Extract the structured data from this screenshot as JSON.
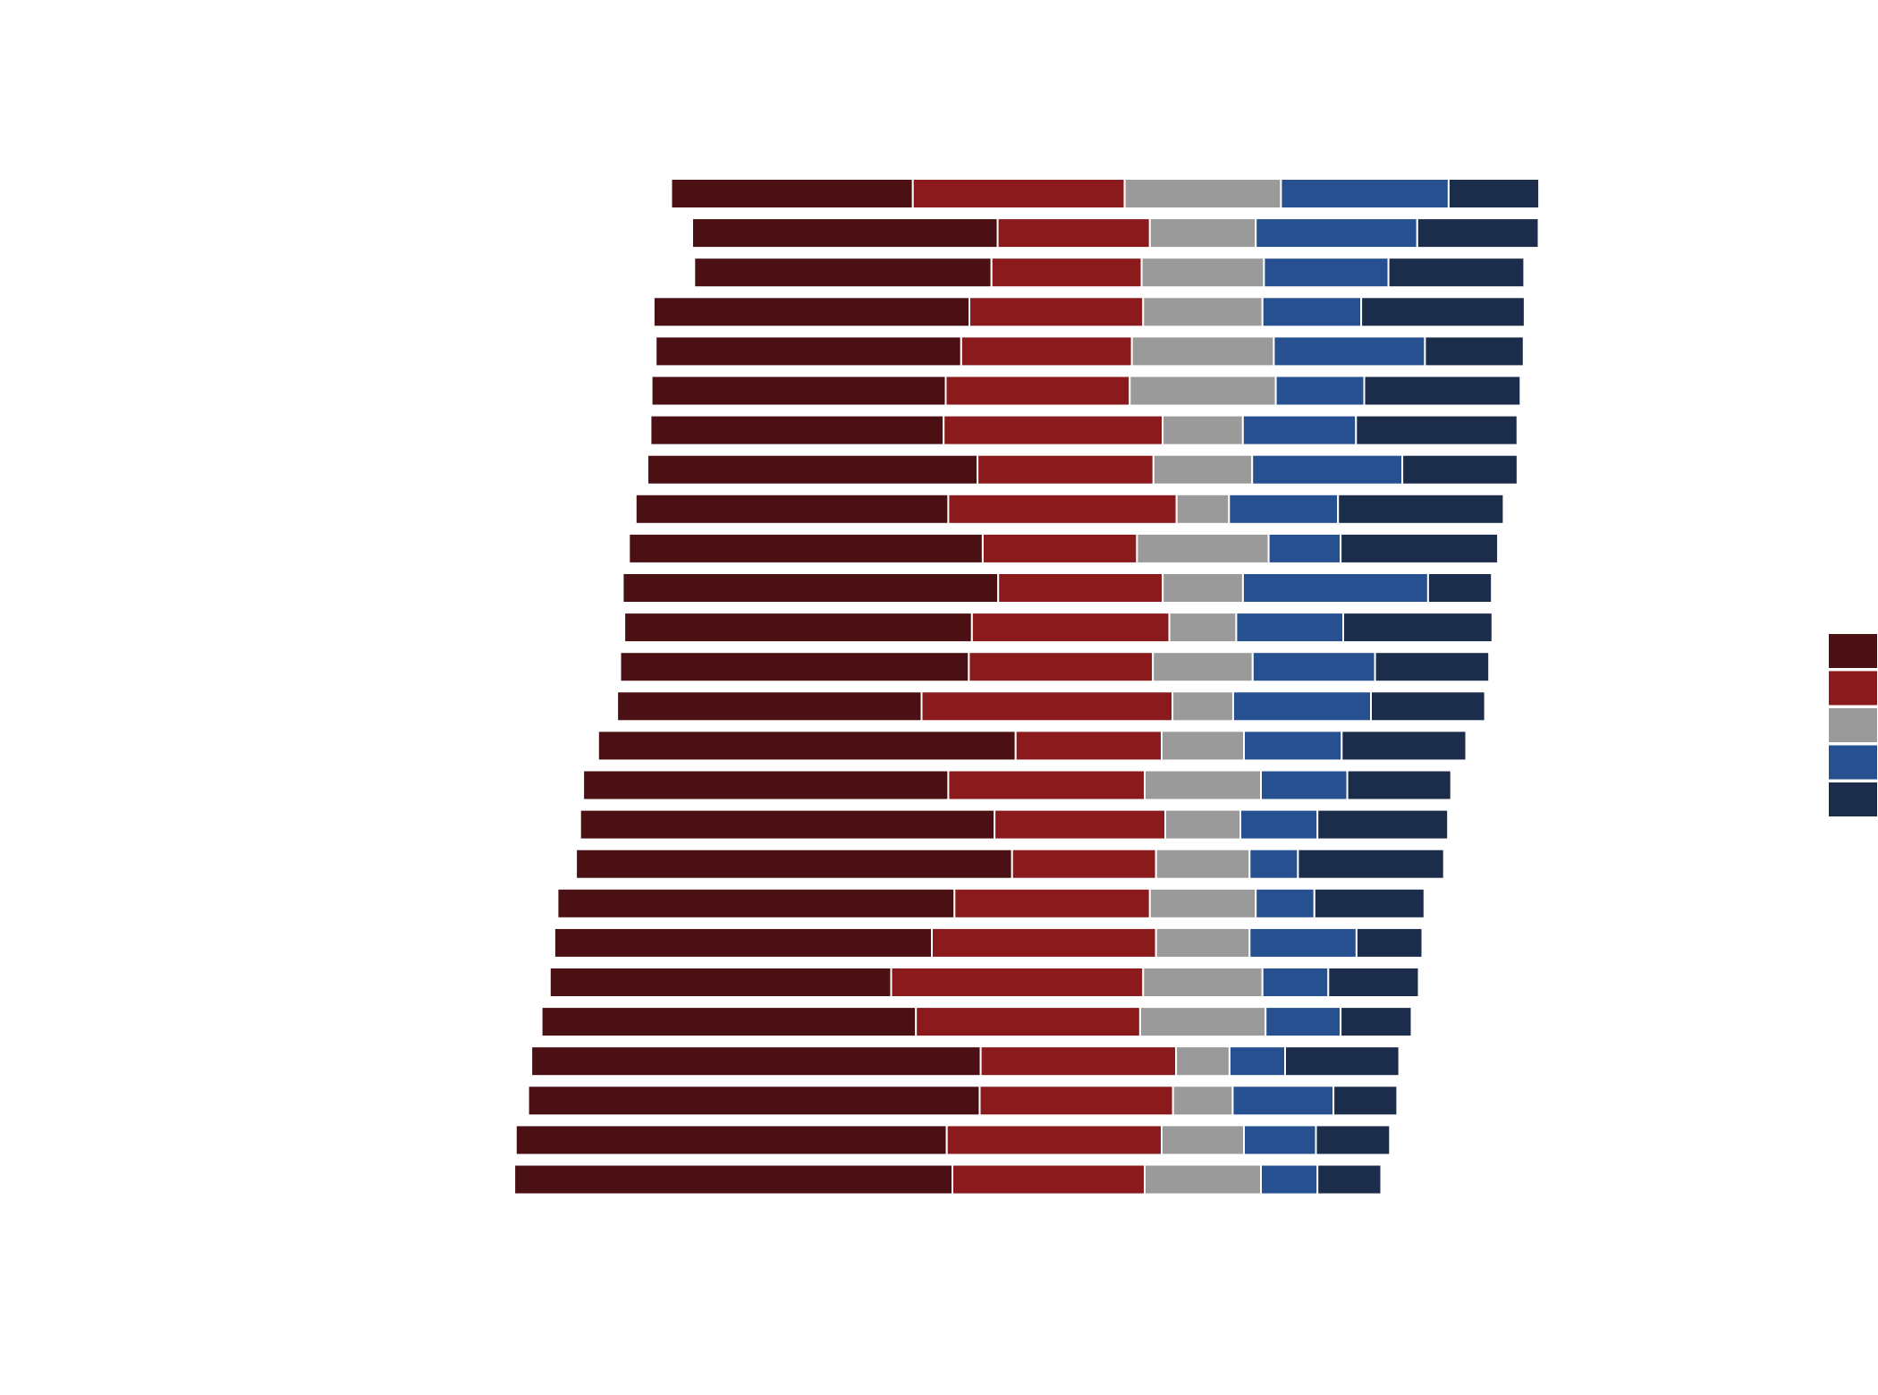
{
  "chart_data": {
    "type": "bar",
    "orientation": "horizontal",
    "stacked": "diverging",
    "title": "",
    "xlabel": "",
    "ylabel": "",
    "grid": false,
    "legend": "right",
    "colors": [
      "#4a1013",
      "#8b1a1c",
      "#9a9a9a",
      "#26508f",
      "#1c2d4c"
    ],
    "series": [
      {
        "values": [
          23.5,
          29.7,
          28.9,
          30.7,
          29.7,
          28.6,
          28.5,
          32.1,
          30.4,
          34.4,
          36.5,
          33.8,
          33.9,
          29.6,
          40.6,
          35.5,
          40.3,
          42.4,
          38.6,
          36.7,
          33.2,
          36.4,
          43.7,
          43.9,
          41.9,
          42.6
        ]
      },
      {
        "values": [
          20.6,
          14.8,
          14.6,
          16.9,
          16.6,
          17.9,
          21.3,
          17.1,
          22.2,
          15.0,
          16.0,
          19.2,
          17.9,
          24.4,
          14.2,
          19.1,
          16.6,
          14.0,
          19.0,
          21.8,
          24.5,
          21.8,
          19.0,
          18.8,
          20.9,
          18.7
        ]
      },
      {
        "values": [
          15.2,
          10.3,
          11.9,
          11.6,
          13.8,
          14.2,
          7.8,
          9.6,
          5.1,
          12.8,
          7.8,
          6.5,
          9.7,
          5.9,
          8.0,
          11.3,
          7.3,
          9.1,
          10.3,
          9.1,
          11.6,
          12.2,
          5.2,
          5.8,
          8.0,
          11.3
        ]
      },
      {
        "values": [
          16.3,
          15.7,
          12.1,
          9.6,
          14.7,
          8.6,
          11.0,
          14.6,
          10.6,
          7.0,
          18.0,
          10.4,
          11.9,
          13.4,
          9.5,
          8.4,
          7.5,
          4.7,
          5.7,
          10.4,
          6.4,
          7.3,
          5.4,
          9.8,
          7.0,
          5.5
        ]
      },
      {
        "values": [
          8.8,
          11.8,
          13.2,
          15.9,
          9.6,
          15.2,
          15.7,
          11.2,
          16.1,
          15.3,
          6.2,
          14.5,
          11.1,
          11.1,
          12.1,
          10.1,
          12.7,
          14.2,
          10.7,
          6.4,
          8.8,
          6.9,
          11.1,
          6.2,
          7.2,
          6.2
        ]
      }
    ],
    "legend_entries": [
      "",
      "",
      "",
      "",
      ""
    ]
  }
}
